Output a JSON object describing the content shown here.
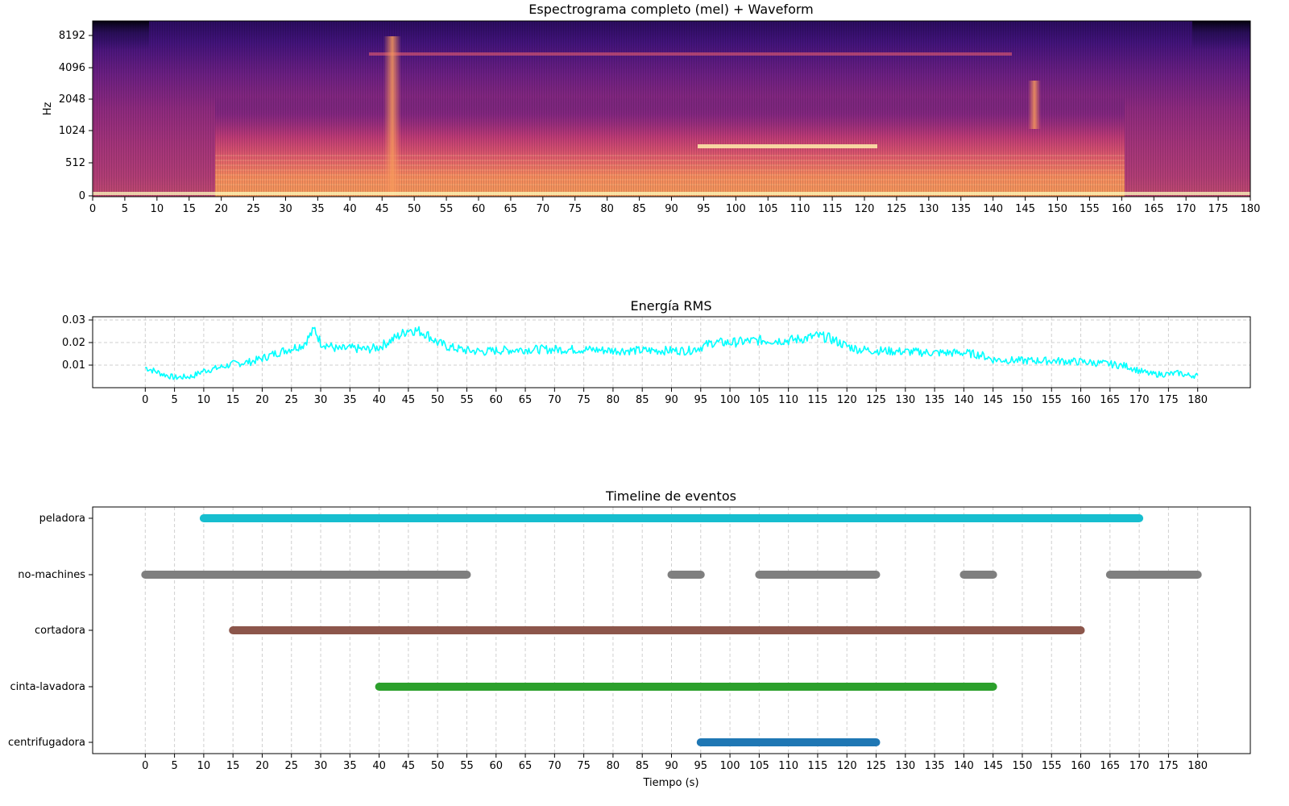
{
  "colors": {
    "rms_line": "#00ffff",
    "grid": "#cccccc",
    "peladora": "#17becf",
    "no-machines": "#7f7f7f",
    "cortadora": "#8c564b",
    "cinta-lavadora": "#2ca02c",
    "centrifugadora": "#1f77b4",
    "spectrogram_colormap": "magma"
  },
  "chart_data": [
    {
      "type": "heatmap",
      "title": "Espectrograma completo (mel) + Waveform",
      "ylabel": "Hz",
      "xlim": [
        0,
        180
      ],
      "x_ticks": [
        0,
        5,
        10,
        15,
        20,
        25,
        30,
        35,
        40,
        45,
        50,
        55,
        60,
        65,
        70,
        75,
        80,
        85,
        90,
        95,
        100,
        105,
        110,
        115,
        120,
        125,
        130,
        135,
        140,
        145,
        150,
        155,
        160,
        165,
        170,
        175,
        180
      ],
      "y_ticks": [
        "0",
        "512",
        "1024",
        "2048",
        "4096",
        "8192"
      ],
      "y_scale": "mel",
      "colormap": "magma",
      "features": [
        {
          "kind": "active-band",
          "x_range": [
            19,
            160
          ],
          "freq_range_hz": [
            100,
            1500
          ]
        },
        {
          "kind": "bright-line",
          "x_range": [
            94,
            122
          ],
          "freq_hz": 750
        },
        {
          "kind": "bright-line",
          "x_range": [
            43,
            143
          ],
          "freq_hz": 5500
        },
        {
          "kind": "vertical-burst",
          "x": 46.5
        },
        {
          "kind": "vertical-burst",
          "x": 146.5
        },
        {
          "kind": "quiet",
          "x_range": [
            0,
            8
          ]
        },
        {
          "kind": "quiet",
          "x_range": [
            171,
            180
          ]
        }
      ]
    },
    {
      "type": "line",
      "title": "Energía RMS",
      "xlim": [
        -9,
        189
      ],
      "ylim": [
        0.0,
        0.0315
      ],
      "x_ticks": [
        0,
        5,
        10,
        15,
        20,
        25,
        30,
        35,
        40,
        45,
        50,
        55,
        60,
        65,
        70,
        75,
        80,
        85,
        90,
        95,
        100,
        105,
        110,
        115,
        120,
        125,
        130,
        135,
        140,
        145,
        150,
        155,
        160,
        165,
        170,
        175,
        180
      ],
      "y_ticks": [
        "0.01",
        "0.02",
        "0.03"
      ],
      "grid": true,
      "series": [
        {
          "x": [
            0,
            3,
            5,
            8,
            10,
            12,
            15,
            18,
            20,
            22,
            25,
            27,
            29,
            30,
            33,
            35,
            38,
            40,
            42,
            44,
            45,
            47,
            48,
            50,
            52,
            55,
            58,
            60,
            65,
            70,
            75,
            80,
            85,
            90,
            93,
            95,
            97,
            100,
            105,
            110,
            113,
            115,
            117,
            120,
            122,
            125,
            130,
            135,
            140,
            143,
            145,
            150,
            155,
            160,
            165,
            168,
            170,
            172,
            175,
            177,
            178,
            180
          ],
          "y": [
            0.009,
            0.006,
            0.0045,
            0.005,
            0.0075,
            0.0085,
            0.0105,
            0.0115,
            0.013,
            0.015,
            0.0175,
            0.019,
            0.026,
            0.02,
            0.017,
            0.0175,
            0.017,
            0.018,
            0.021,
            0.024,
            0.026,
            0.025,
            0.024,
            0.02,
            0.018,
            0.0165,
            0.016,
            0.0165,
            0.017,
            0.017,
            0.017,
            0.0165,
            0.0165,
            0.0165,
            0.0165,
            0.018,
            0.02,
            0.02,
            0.021,
            0.021,
            0.022,
            0.023,
            0.022,
            0.0185,
            0.017,
            0.0165,
            0.016,
            0.0155,
            0.0155,
            0.0145,
            0.0125,
            0.012,
            0.012,
            0.0115,
            0.0105,
            0.0095,
            0.0075,
            0.006,
            0.006,
            0.0065,
            0.0055,
            0.0055
          ]
        }
      ]
    },
    {
      "type": "bar",
      "subtype": "timeline",
      "title": "Timeline de eventos",
      "xlabel": "Tiempo (s)",
      "xlim": [
        -9,
        189
      ],
      "x_ticks": [
        0,
        5,
        10,
        15,
        20,
        25,
        30,
        35,
        40,
        45,
        50,
        55,
        60,
        65,
        70,
        75,
        80,
        85,
        90,
        95,
        100,
        105,
        110,
        115,
        120,
        125,
        130,
        135,
        140,
        145,
        150,
        155,
        160,
        165,
        170,
        175,
        180
      ],
      "categories": [
        "peladora",
        "no-machines",
        "cortadora",
        "cinta-lavadora",
        "centrifugadora"
      ],
      "grid": "x",
      "series": [
        {
          "name": "peladora",
          "segments": [
            [
              10,
              170
            ]
          ]
        },
        {
          "name": "no-machines",
          "segments": [
            [
              0,
              55
            ],
            [
              90,
              95
            ],
            [
              105,
              125
            ],
            [
              140,
              145
            ],
            [
              165,
              180
            ]
          ]
        },
        {
          "name": "cortadora",
          "segments": [
            [
              15,
              160
            ]
          ]
        },
        {
          "name": "cinta-lavadora",
          "segments": [
            [
              40,
              145
            ]
          ]
        },
        {
          "name": "centrifugadora",
          "segments": [
            [
              95,
              125
            ]
          ]
        }
      ]
    }
  ]
}
